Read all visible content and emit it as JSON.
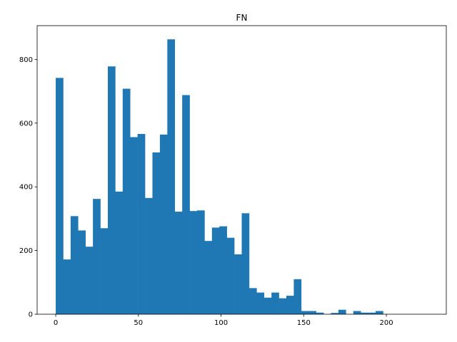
{
  "chart_data": {
    "type": "bar",
    "title": "FN",
    "xlabel": "",
    "ylabel": "",
    "bin_start": 0,
    "bin_width": 4.5,
    "values": [
      742,
      172,
      308,
      263,
      212,
      362,
      270,
      778,
      385,
      708,
      556,
      566,
      365,
      508,
      564,
      863,
      322,
      688,
      324,
      326,
      230,
      272,
      276,
      240,
      188,
      317,
      82,
      68,
      52,
      68,
      50,
      58,
      110,
      10,
      10,
      5,
      0,
      4,
      14,
      0,
      10,
      5,
      5,
      10,
      0,
      0,
      0,
      0,
      0,
      0
    ],
    "xlim": [
      -11.25,
      236.25
    ],
    "ylim": [
      0,
      906
    ],
    "xticks": [
      0,
      50,
      100,
      150,
      200
    ],
    "yticks": [
      0,
      200,
      400,
      600,
      800
    ],
    "bar_color": "#1f77b4",
    "grid": false
  }
}
